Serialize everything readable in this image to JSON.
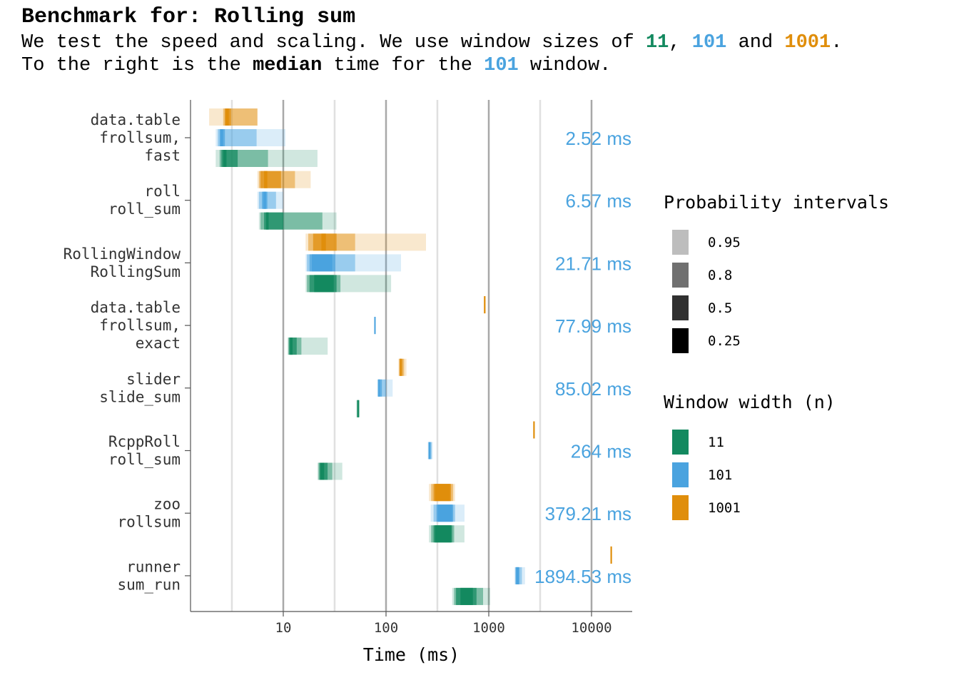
{
  "header": {
    "title": "Benchmark for: Rolling sum",
    "line1_pre": "We test the speed and scaling. We use window sizes of ",
    "line1_w11": "11",
    "line1_sep1": ", ",
    "line1_w101": "101",
    "line1_sep2": " and ",
    "line1_w1001": "1001",
    "line1_end": ".",
    "line2_pre": "To the right is the ",
    "line2_bold": "median",
    "line2_mid": " time for the ",
    "line2_w101": "101",
    "line2_end": " window."
  },
  "colors": {
    "w11": "#13895f",
    "w101": "#4aa3df",
    "w1001": "#e08e0b",
    "median_label": "#4aa3df"
  },
  "chart_data": {
    "type": "interval",
    "xlabel": "Time (ms)",
    "x_scale": "log10",
    "xlim": [
      1.2,
      17000
    ],
    "x_ticks": [
      10,
      100,
      1000,
      10000
    ],
    "x_tick_labels": [
      "10",
      "100",
      "1000",
      "10000"
    ],
    "minor_gridlines": [
      3.16,
      31.6,
      316,
      3160
    ],
    "grid": true,
    "groups": [
      {
        "label_lines": [
          "data.table",
          "frollsum,",
          "fast"
        ],
        "median_label": "2.52 ms",
        "intervals": {
          "1001": {
            "p95": [
              1.9,
              5.6
            ],
            "p80": [
              2.6,
              5.6
            ],
            "p50": [
              2.7,
              3.1
            ],
            "p25": [
              2.75,
              2.95
            ]
          },
          "101": {
            "p95": [
              2.2,
              10.5
            ],
            "p80": [
              2.3,
              5.5
            ],
            "p50": [
              2.4,
              2.7
            ],
            "p25": [
              2.45,
              2.6
            ]
          },
          "11": {
            "p95": [
              2.2,
              21.5
            ],
            "p80": [
              2.4,
              7.1
            ],
            "p50": [
              2.5,
              3.6
            ],
            "p25": [
              2.6,
              2.8
            ]
          }
        }
      },
      {
        "label_lines": [
          "roll",
          "roll_sum"
        ],
        "median_label": "6.57 ms",
        "intervals": {
          "1001": {
            "p95": [
              5.6,
              18.5
            ],
            "p80": [
              5.8,
              13.0
            ],
            "p50": [
              6.0,
              9.5
            ],
            "p25": [
              6.5,
              7.0
            ]
          },
          "101": {
            "p95": [
              5.6,
              10.0
            ],
            "p80": [
              5.8,
              8.5
            ],
            "p50": [
              6.2,
              7.0
            ],
            "p25": [
              6.4,
              6.8
            ]
          },
          "11": {
            "p95": [
              5.8,
              33.0
            ],
            "p80": [
              6.0,
              24.0
            ],
            "p50": [
              6.5,
              10.0
            ],
            "p25": [
              6.8,
              7.2
            ]
          }
        }
      },
      {
        "label_lines": [
          "RollingWindow",
          "RollingSum"
        ],
        "median_label": "21.71 ms",
        "intervals": {
          "1001": {
            "p95": [
              16.5,
              245
            ],
            "p80": [
              17.5,
              50.0
            ],
            "p50": [
              19.5,
              33.0
            ],
            "p25": [
              23.5,
              26.0
            ]
          },
          "101": {
            "p95": [
              16.5,
              140
            ],
            "p80": [
              17.0,
              50.0
            ],
            "p50": [
              18.0,
              32.0
            ],
            "p25": [
              19.0,
              30.0
            ]
          },
          "11": {
            "p95": [
              16.5,
              112
            ],
            "p80": [
              17.0,
              36.0
            ],
            "p50": [
              18.0,
              33.0
            ],
            "p25": [
              20.0,
              31.0
            ]
          }
        }
      },
      {
        "label_lines": [
          "data.table",
          "frollsum,",
          "exact"
        ],
        "median_label": "77.99 ms",
        "intervals": {
          "1001": {
            "p95": [
              900,
              925
            ],
            "p80": [
              905,
              920
            ],
            "p50": [
              908,
              918
            ],
            "p25": [
              910,
              916
            ]
          },
          "101": {
            "p95": [
              76.5,
              79.5
            ],
            "p80": [
              77.0,
              79.0
            ],
            "p50": [
              77.5,
              78.5
            ],
            "p25": [
              77.7,
              78.3
            ]
          },
          "11": {
            "p95": [
              11.0,
              27.0
            ],
            "p80": [
              11.2,
              15.0
            ],
            "p50": [
              11.4,
              13.5
            ],
            "p25": [
              11.6,
              12.3
            ]
          }
        }
      },
      {
        "label_lines": [
          "slider",
          "slide_sum"
        ],
        "median_label": "85.02 ms",
        "intervals": {
          "1001": {
            "p95": [
              132,
              158
            ],
            "p80": [
              134,
              150
            ],
            "p50": [
              136,
              145
            ],
            "p25": [
              137,
              140
            ]
          },
          "101": {
            "p95": [
              82.0,
              116
            ],
            "p80": [
              83.0,
              100
            ],
            "p50": [
              84.0,
              91.0
            ],
            "p25": [
              84.5,
              86.5
            ]
          },
          "11": {
            "p95": [
              51.5,
              55.5
            ],
            "p80": [
              52.0,
              55.0
            ],
            "p50": [
              52.5,
              54.5
            ],
            "p25": [
              52.8,
              54.0
            ]
          }
        }
      },
      {
        "label_lines": [
          "RcppRoll",
          "roll_sum"
        ],
        "median_label": "264 ms",
        "intervals": {
          "1001": {
            "p95": [
              2720,
              2790
            ],
            "p80": [
              2730,
              2780
            ],
            "p50": [
              2740,
              2775
            ],
            "p25": [
              2745,
              2770
            ]
          },
          "101": {
            "p95": [
              255,
              285
            ],
            "p80": [
              258,
              278
            ],
            "p50": [
              260,
              272
            ],
            "p25": [
              261,
              268
            ]
          },
          "11": {
            "p95": [
              21.5,
              37.5
            ],
            "p80": [
              22.0,
              30.0
            ],
            "p50": [
              22.5,
              27.0
            ],
            "p25": [
              23.0,
              25.0
            ]
          }
        }
      },
      {
        "label_lines": [
          "zoo",
          "rollsum"
        ],
        "median_label": "379.21 ms",
        "intervals": {
          "1001": {
            "p95": [
              262,
              470
            ],
            "p80": [
              275,
              450
            ],
            "p50": [
              290,
              430
            ],
            "p25": [
              300,
              420
            ]
          },
          "101": {
            "p95": [
              272,
              580
            ],
            "p80": [
              290,
              470
            ],
            "p50": [
              310,
              450
            ],
            "p25": [
              320,
              440
            ]
          },
          "11": {
            "p95": [
              262,
              580
            ],
            "p80": [
              275,
              460
            ],
            "p50": [
              290,
              440
            ],
            "p25": [
              300,
              430
            ]
          }
        }
      },
      {
        "label_lines": [
          "runner",
          "sum_run"
        ],
        "median_label": "1894.53 ms",
        "intervals": {
          "1001": {
            "p95": [
              15300,
              15800
            ],
            "p80": [
              15350,
              15750
            ],
            "p50": [
              15400,
              15700
            ],
            "p25": [
              15450,
              15650
            ]
          },
          "101": {
            "p95": [
              1780,
              2250
            ],
            "p80": [
              1810,
              2100
            ],
            "p50": [
              1830,
              1990
            ],
            "p25": [
              1850,
              1950
            ]
          },
          "11": {
            "p95": [
              440,
              1030
            ],
            "p80": [
              460,
              880
            ],
            "p50": [
              480,
              760
            ],
            "p25": [
              530,
              700
            ]
          }
        }
      }
    ],
    "legend_prob": {
      "title": "Probability intervals",
      "entries": [
        {
          "label": "0.95",
          "color": "#bdbdbd"
        },
        {
          "label": "0.8",
          "color": "#707070"
        },
        {
          "label": "0.5",
          "color": "#303030"
        },
        {
          "label": "0.25",
          "color": "#000000"
        }
      ]
    },
    "legend_window": {
      "title": "Window width (n)",
      "entries": [
        {
          "label": "11",
          "color": "#13895f"
        },
        {
          "label": "101",
          "color": "#4aa3df"
        },
        {
          "label": "1001",
          "color": "#e08e0b"
        }
      ]
    }
  }
}
